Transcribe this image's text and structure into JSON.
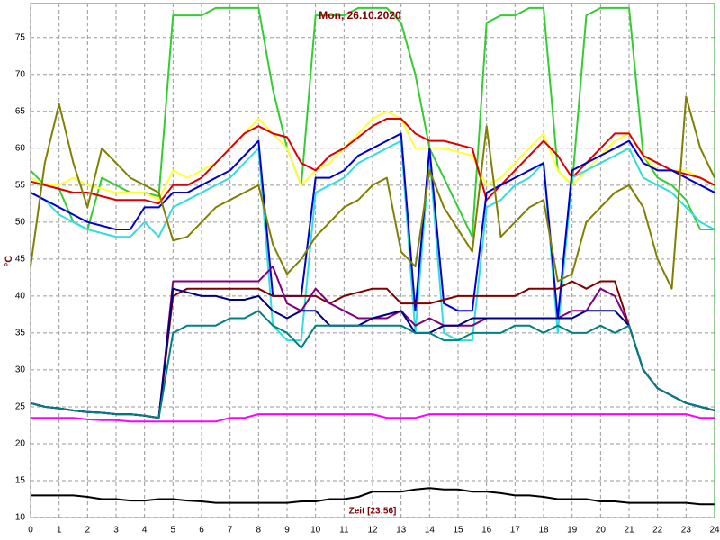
{
  "chart_data": {
    "type": "line",
    "title": "Mon, 26.10.2020",
    "x_label": "Zeit [23:56]",
    "y_label": "°C",
    "x": [
      0,
      0.5,
      1,
      1.5,
      2,
      2.5,
      3,
      3.5,
      4,
      4.5,
      5,
      5.5,
      6,
      6.5,
      7,
      7.5,
      8,
      8.5,
      9,
      9.5,
      10,
      10.5,
      11,
      11.5,
      12,
      12.5,
      13,
      13.5,
      14,
      14.5,
      15,
      15.5,
      16,
      16.5,
      17,
      17.5,
      18,
      18.5,
      19,
      19.5,
      20,
      20.5,
      21,
      21.5,
      22,
      22.5,
      23,
      23.5,
      24
    ],
    "xlim": [
      0,
      24
    ],
    "xticks": [
      0,
      1,
      2,
      3,
      4,
      5,
      6,
      7,
      8,
      9,
      10,
      11,
      12,
      13,
      14,
      15,
      16,
      17,
      18,
      19,
      20,
      21,
      22,
      23,
      24
    ],
    "ylim": [
      10,
      79.6
    ],
    "yticks": [
      10,
      15,
      20,
      25,
      30,
      35,
      40,
      45,
      50,
      55,
      60,
      65,
      70,
      75
    ],
    "grid": true,
    "series": [
      {
        "color": "#33cc33",
        "values": [
          57,
          55,
          54.5,
          50,
          49,
          56,
          55,
          54,
          54,
          53.5,
          78,
          78,
          78,
          79,
          79,
          79,
          79,
          68,
          60,
          55,
          78,
          78,
          78,
          79,
          79,
          79,
          77,
          70,
          60,
          56,
          52,
          48,
          77,
          78,
          78,
          79,
          79,
          57,
          55,
          78,
          79,
          79,
          79,
          59,
          56,
          55,
          53,
          49,
          49
        ]
      },
      {
        "color": "#ffff33",
        "values": [
          56,
          55,
          55,
          56,
          55,
          54.5,
          54,
          54,
          54,
          53,
          57,
          56,
          57,
          58,
          60,
          62,
          64,
          62,
          60,
          55,
          57,
          58,
          60,
          62,
          64,
          65,
          64,
          60,
          60,
          60,
          59.5,
          59,
          55,
          56,
          58,
          60,
          62,
          57,
          55,
          57,
          59,
          61,
          62,
          59,
          57,
          57,
          57,
          56,
          55
        ]
      },
      {
        "color": "#dd0000",
        "values": [
          55.5,
          55,
          54.5,
          54,
          54,
          53.5,
          53,
          53,
          53,
          52.5,
          55,
          55,
          56,
          58,
          60,
          62,
          63,
          62,
          61.5,
          58,
          57,
          59,
          60,
          61.5,
          63,
          64,
          64,
          62,
          61,
          61,
          60.5,
          60,
          53,
          55,
          57,
          59,
          61,
          59,
          56,
          58,
          60,
          62,
          62,
          59,
          58,
          57,
          56.5,
          56,
          55
        ]
      },
      {
        "color": "#33dddd",
        "values": [
          54,
          53,
          51,
          50,
          49,
          48.5,
          48,
          48,
          50,
          48,
          52,
          53,
          54,
          55,
          56,
          58,
          60,
          36,
          34,
          34,
          54,
          55,
          56,
          58,
          59,
          60,
          61,
          35,
          59,
          35,
          34,
          34,
          52,
          53,
          55,
          56,
          58,
          35,
          56,
          57,
          58,
          59,
          60,
          56,
          55,
          54,
          52,
          50,
          49
        ]
      },
      {
        "color": "#0000cc",
        "values": [
          54,
          53,
          52,
          51,
          50,
          49.5,
          49,
          49,
          52,
          52,
          54,
          54,
          55,
          56,
          57,
          59,
          61,
          40,
          40,
          40,
          56,
          56,
          57,
          59,
          60,
          61,
          62,
          38,
          60,
          39,
          38,
          38,
          54,
          55,
          56,
          57,
          58,
          37,
          57,
          58,
          59,
          60,
          61,
          58,
          57,
          57,
          56,
          55,
          54
        ]
      },
      {
        "color": "#808000",
        "values": [
          44,
          58,
          66,
          58,
          52,
          60,
          58,
          56,
          55,
          54,
          47.5,
          48,
          50,
          52,
          53,
          54,
          55,
          47,
          43,
          45,
          48,
          50,
          52,
          53,
          55,
          56,
          46,
          44,
          57,
          52,
          49,
          46,
          63,
          48,
          50,
          52,
          53,
          42,
          43,
          50,
          52,
          54,
          55,
          52,
          45,
          41,
          67,
          60,
          56
        ]
      },
      {
        "color": "#800000",
        "values": [
          25.5,
          25,
          24.8,
          24.5,
          24.3,
          24.2,
          24,
          24,
          23.8,
          23.5,
          40,
          41,
          41,
          41,
          41,
          41,
          41,
          40,
          40,
          40,
          40,
          39,
          40,
          40.5,
          41,
          41,
          39,
          39,
          39,
          39.5,
          40,
          40,
          40,
          40,
          40,
          41,
          41,
          41,
          42,
          41,
          42,
          42,
          36,
          30,
          27.5,
          26.5,
          25.5,
          25,
          24.5
        ]
      },
      {
        "color": "#800080",
        "values": [
          25.5,
          25,
          24.8,
          24.5,
          24.3,
          24.2,
          24,
          24,
          23.8,
          23.5,
          42,
          42,
          42,
          42,
          42,
          42,
          42,
          44,
          39,
          38,
          41,
          39,
          38,
          37,
          37,
          37,
          38,
          36,
          37,
          36,
          36,
          36,
          37,
          37,
          37,
          37,
          37,
          37,
          38,
          38,
          41,
          40,
          36,
          30,
          27.5,
          26.5,
          25.5,
          25,
          24.5
        ]
      },
      {
        "color": "#000080",
        "values": [
          25.5,
          25,
          24.8,
          24.5,
          24.3,
          24.2,
          24,
          24,
          23.8,
          23.5,
          41,
          40.5,
          40,
          40,
          39.5,
          39.5,
          40,
          38,
          37,
          38,
          38,
          36,
          36,
          36,
          37,
          37.5,
          38,
          35,
          35,
          36,
          36,
          37,
          37,
          37,
          37,
          37,
          37,
          37,
          37,
          38,
          38,
          38,
          36,
          30,
          27.5,
          26.5,
          25.5,
          25,
          24.5
        ]
      },
      {
        "color": "#008080",
        "values": [
          25.5,
          25,
          24.8,
          24.5,
          24.3,
          24.2,
          24,
          24,
          23.8,
          23.5,
          35,
          36,
          36,
          36,
          37,
          37,
          38,
          36,
          35,
          33,
          36,
          36,
          36,
          36,
          36,
          36,
          36,
          35,
          35,
          34,
          34,
          35,
          35,
          35,
          36,
          36,
          35,
          36,
          35,
          35,
          36,
          35,
          36,
          30,
          27.5,
          26.5,
          25.5,
          25,
          24.5
        ]
      },
      {
        "color": "#ff00ff",
        "values": [
          23.5,
          23.5,
          23.5,
          23.5,
          23.3,
          23.2,
          23.2,
          23,
          23,
          23,
          23,
          23,
          23,
          23,
          23.5,
          23.5,
          24,
          24,
          24,
          24,
          24,
          24,
          24,
          24,
          24,
          23.5,
          23.5,
          23.5,
          24,
          24,
          24,
          24,
          24,
          24,
          24,
          24,
          24,
          24,
          24,
          24,
          24,
          24,
          24,
          24,
          24,
          24,
          24,
          23.5,
          23.5
        ]
      },
      {
        "color": "#000000",
        "values": [
          13,
          13,
          13,
          13,
          12.8,
          12.5,
          12.5,
          12.3,
          12.3,
          12.5,
          12.5,
          12.3,
          12.2,
          12,
          12,
          12,
          12,
          12,
          12,
          12.2,
          12.2,
          12.5,
          12.5,
          12.8,
          13.5,
          13.5,
          13.5,
          13.8,
          14,
          13.8,
          13.8,
          13.5,
          13.5,
          13.3,
          13,
          13,
          12.8,
          12.5,
          12.5,
          12.5,
          12.2,
          12.2,
          12,
          12,
          12,
          12,
          12,
          11.8,
          11.8
        ]
      }
    ]
  }
}
